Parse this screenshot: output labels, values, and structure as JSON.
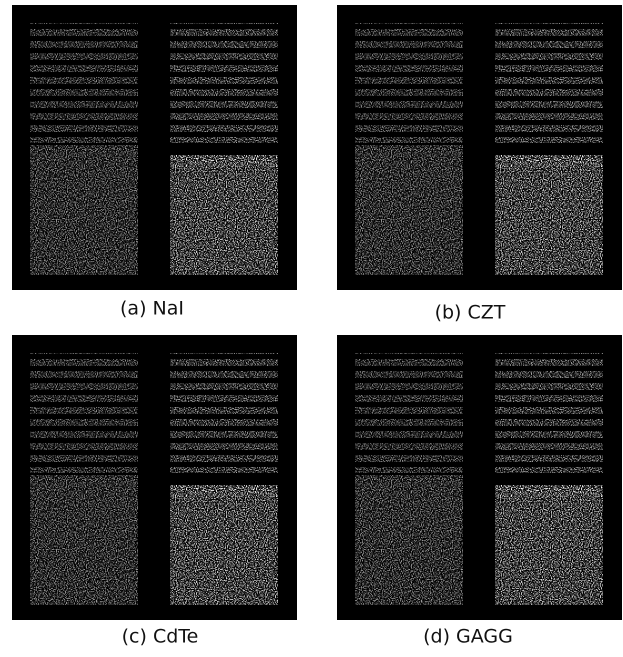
{
  "panels": [
    {
      "caption": "(a) NaI"
    },
    {
      "caption": "(b) CZT"
    },
    {
      "caption": "(c) CdTe"
    },
    {
      "caption": "(d) GAGG"
    }
  ]
}
